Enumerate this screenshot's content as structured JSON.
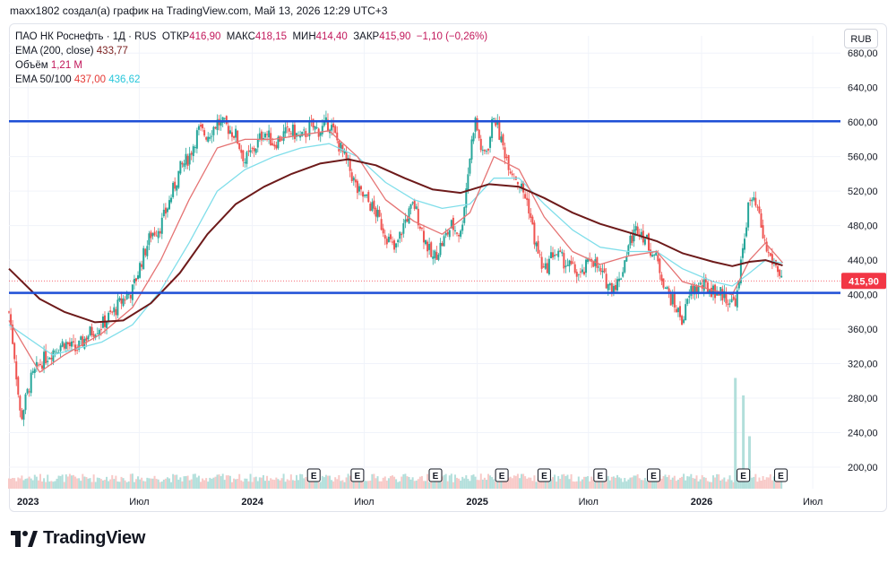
{
  "caption": "maxx1802 создал(а) график на TradingView.com, Май 13, 2026 12:29 UTC+3",
  "legend": {
    "symbol": "ПАО НК Роснефть · 1Д · RUS",
    "open_label": "ОТКР",
    "open": "416,90",
    "high_label": "МАКС",
    "high": "418,15",
    "low_label": "МИН",
    "low": "414,40",
    "close_label": "ЗАКР",
    "close": "415,90",
    "change": "−1,10 (−0,26%)",
    "ema200_label": "EMA (200, close)",
    "ema200_value": "433,77",
    "volume_label": "Объём",
    "volume_value": "1,21 M",
    "ema50_100_label": "EMA 50/100",
    "ema50_value": "437,00",
    "ema100_value": "436,62"
  },
  "currency_button": "RUB",
  "brand": "TradingView",
  "colors": {
    "up": "#26a69a",
    "down": "#ef5350",
    "ema50": "#e57373",
    "ema100": "#80deea",
    "ema200": "#6d1a1a",
    "hline": "#1e4fd6",
    "price_tag": "#f23645"
  },
  "chart_data": {
    "type": "candlestick",
    "symbol": "ПАО НК Роснефть",
    "interval": "1Д",
    "currency": "RUB",
    "x_start": "2022-12-01",
    "x_end": "2026-08-15",
    "y_range": [
      175,
      700
    ],
    "y_ticks": [
      "680,00",
      "640,00",
      "600,00",
      "560,00",
      "520,00",
      "480,00",
      "440,00",
      "400,00",
      "360,00",
      "320,00",
      "280,00",
      "240,00",
      "200,00"
    ],
    "x_ticks": [
      {
        "label": "2023",
        "date": "2023-01-01",
        "bold": true
      },
      {
        "label": "Июл",
        "date": "2023-07-01",
        "bold": false
      },
      {
        "label": "2024",
        "date": "2024-01-01",
        "bold": true
      },
      {
        "label": "Июл",
        "date": "2024-07-01",
        "bold": false
      },
      {
        "label": "2025",
        "date": "2025-01-01",
        "bold": true
      },
      {
        "label": "Июл",
        "date": "2025-07-01",
        "bold": false
      },
      {
        "label": "2026",
        "date": "2026-01-01",
        "bold": true
      },
      {
        "label": "Июл",
        "date": "2026-07-01",
        "bold": false
      }
    ],
    "last_price": "415,90",
    "last_price_value": 415.9,
    "horizontal_lines": [
      601,
      402
    ],
    "close_series": [
      [
        "2022-12-01",
        380
      ],
      [
        "2022-12-10",
        330
      ],
      [
        "2022-12-20",
        255
      ],
      [
        "2023-01-05",
        300
      ],
      [
        "2023-01-20",
        320
      ],
      [
        "2023-02-10",
        335
      ],
      [
        "2023-03-01",
        345
      ],
      [
        "2023-03-20",
        335
      ],
      [
        "2023-04-10",
        355
      ],
      [
        "2023-05-01",
        365
      ],
      [
        "2023-05-20",
        380
      ],
      [
        "2023-06-05",
        395
      ],
      [
        "2023-06-20",
        405
      ],
      [
        "2023-07-05",
        440
      ],
      [
        "2023-07-20",
        470
      ],
      [
        "2023-08-05",
        480
      ],
      [
        "2023-08-20",
        510
      ],
      [
        "2023-09-05",
        545
      ],
      [
        "2023-09-20",
        560
      ],
      [
        "2023-10-05",
        590
      ],
      [
        "2023-10-20",
        585
      ],
      [
        "2023-11-05",
        600
      ],
      [
        "2023-11-20",
        595
      ],
      [
        "2023-12-05",
        585
      ],
      [
        "2023-12-20",
        555
      ],
      [
        "2024-01-05",
        570
      ],
      [
        "2024-01-20",
        590
      ],
      [
        "2024-02-05",
        575
      ],
      [
        "2024-02-20",
        585
      ],
      [
        "2024-03-05",
        590
      ],
      [
        "2024-03-20",
        580
      ],
      [
        "2024-04-05",
        595
      ],
      [
        "2024-04-20",
        590
      ],
      [
        "2024-05-05",
        600
      ],
      [
        "2024-05-20",
        575
      ],
      [
        "2024-06-05",
        550
      ],
      [
        "2024-06-20",
        520
      ],
      [
        "2024-07-05",
        510
      ],
      [
        "2024-07-20",
        495
      ],
      [
        "2024-08-05",
        470
      ],
      [
        "2024-08-20",
        450
      ],
      [
        "2024-09-05",
        485
      ],
      [
        "2024-09-20",
        505
      ],
      [
        "2024-10-05",
        470
      ],
      [
        "2024-10-20",
        440
      ],
      [
        "2024-11-05",
        460
      ],
      [
        "2024-11-20",
        480
      ],
      [
        "2024-12-05",
        470
      ],
      [
        "2024-12-20",
        560
      ],
      [
        "2024-12-28",
        605
      ],
      [
        "2025-01-10",
        560
      ],
      [
        "2025-01-20",
        575
      ],
      [
        "2025-01-28",
        610
      ],
      [
        "2025-02-10",
        575
      ],
      [
        "2025-02-25",
        545
      ],
      [
        "2025-03-10",
        530
      ],
      [
        "2025-03-25",
        505
      ],
      [
        "2025-04-05",
        460
      ],
      [
        "2025-04-20",
        425
      ],
      [
        "2025-05-05",
        450
      ],
      [
        "2025-05-20",
        440
      ],
      [
        "2025-06-05",
        430
      ],
      [
        "2025-06-20",
        420
      ],
      [
        "2025-07-05",
        445
      ],
      [
        "2025-07-20",
        425
      ],
      [
        "2025-08-05",
        410
      ],
      [
        "2025-08-20",
        415
      ],
      [
        "2025-09-05",
        460
      ],
      [
        "2025-09-20",
        480
      ],
      [
        "2025-10-05",
        460
      ],
      [
        "2025-10-20",
        440
      ],
      [
        "2025-11-05",
        405
      ],
      [
        "2025-11-20",
        385
      ],
      [
        "2025-12-01",
        370
      ],
      [
        "2025-12-15",
        405
      ],
      [
        "2026-01-01",
        410
      ],
      [
        "2026-01-20",
        405
      ],
      [
        "2026-02-05",
        400
      ],
      [
        "2026-02-20",
        390
      ],
      [
        "2026-03-01",
        400
      ],
      [
        "2026-03-10",
        460
      ],
      [
        "2026-03-20",
        510
      ],
      [
        "2026-04-01",
        500
      ],
      [
        "2026-04-15",
        455
      ],
      [
        "2026-04-25",
        440
      ],
      [
        "2026-05-05",
        430
      ],
      [
        "2026-05-13",
        415.9
      ]
    ],
    "ema50_series": [
      [
        "2022-12-01",
        370
      ],
      [
        "2023-01-20",
        310
      ],
      [
        "2023-03-01",
        330
      ],
      [
        "2023-05-01",
        355
      ],
      [
        "2023-06-20",
        385
      ],
      [
        "2023-08-05",
        440
      ],
      [
        "2023-09-20",
        510
      ],
      [
        "2023-11-05",
        570
      ],
      [
        "2023-12-20",
        580
      ],
      [
        "2024-02-05",
        580
      ],
      [
        "2024-03-20",
        585
      ],
      [
        "2024-05-05",
        590
      ],
      [
        "2024-06-20",
        560
      ],
      [
        "2024-08-05",
        510
      ],
      [
        "2024-09-20",
        485
      ],
      [
        "2024-11-05",
        470
      ],
      [
        "2024-12-20",
        495
      ],
      [
        "2025-01-28",
        560
      ],
      [
        "2025-03-10",
        545
      ],
      [
        "2025-04-20",
        490
      ],
      [
        "2025-06-05",
        450
      ],
      [
        "2025-07-20",
        435
      ],
      [
        "2025-09-05",
        445
      ],
      [
        "2025-10-20",
        450
      ],
      [
        "2025-12-01",
        415
      ],
      [
        "2026-01-20",
        405
      ],
      [
        "2026-02-20",
        400
      ],
      [
        "2026-03-20",
        440
      ],
      [
        "2026-04-15",
        460
      ],
      [
        "2026-05-13",
        437
      ]
    ],
    "ema100_series": [
      [
        "2022-12-01",
        365
      ],
      [
        "2023-02-10",
        330
      ],
      [
        "2023-05-01",
        345
      ],
      [
        "2023-06-20",
        365
      ],
      [
        "2023-08-05",
        405
      ],
      [
        "2023-09-20",
        460
      ],
      [
        "2023-11-05",
        520
      ],
      [
        "2023-12-20",
        545
      ],
      [
        "2024-02-05",
        560
      ],
      [
        "2024-03-20",
        570
      ],
      [
        "2024-05-05",
        575
      ],
      [
        "2024-06-20",
        560
      ],
      [
        "2024-08-05",
        530
      ],
      [
        "2024-09-20",
        510
      ],
      [
        "2024-11-05",
        500
      ],
      [
        "2024-12-20",
        505
      ],
      [
        "2025-01-28",
        535
      ],
      [
        "2025-03-10",
        535
      ],
      [
        "2025-04-20",
        505
      ],
      [
        "2025-06-05",
        475
      ],
      [
        "2025-07-20",
        455
      ],
      [
        "2025-09-05",
        450
      ],
      [
        "2025-10-20",
        450
      ],
      [
        "2025-12-01",
        430
      ],
      [
        "2026-01-20",
        415
      ],
      [
        "2026-02-20",
        410
      ],
      [
        "2026-03-20",
        425
      ],
      [
        "2026-04-15",
        440
      ],
      [
        "2026-05-13",
        436.6
      ]
    ],
    "ema200_series": [
      [
        "2022-12-01",
        430
      ],
      [
        "2023-01-20",
        395
      ],
      [
        "2023-03-01",
        380
      ],
      [
        "2023-04-20",
        368
      ],
      [
        "2023-06-05",
        370
      ],
      [
        "2023-07-20",
        390
      ],
      [
        "2023-09-05",
        425
      ],
      [
        "2023-10-20",
        470
      ],
      [
        "2023-12-05",
        505
      ],
      [
        "2024-01-20",
        525
      ],
      [
        "2024-03-05",
        540
      ],
      [
        "2024-04-20",
        552
      ],
      [
        "2024-06-05",
        557
      ],
      [
        "2024-07-20",
        550
      ],
      [
        "2024-09-05",
        535
      ],
      [
        "2024-10-20",
        522
      ],
      [
        "2024-12-05",
        518
      ],
      [
        "2025-01-20",
        528
      ],
      [
        "2025-03-10",
        525
      ],
      [
        "2025-04-20",
        512
      ],
      [
        "2025-06-05",
        495
      ],
      [
        "2025-07-20",
        482
      ],
      [
        "2025-09-05",
        472
      ],
      [
        "2025-10-20",
        462
      ],
      [
        "2025-12-01",
        448
      ],
      [
        "2026-01-20",
        438
      ],
      [
        "2026-02-20",
        433
      ],
      [
        "2026-03-20",
        438
      ],
      [
        "2026-04-15",
        440
      ],
      [
        "2026-05-13",
        433.8
      ]
    ],
    "earnings_markers": [
      "2024-04-10",
      "2024-06-20",
      "2024-10-25",
      "2025-02-10",
      "2025-04-20",
      "2025-07-20",
      "2025-10-15",
      "2026-03-10",
      "2026-05-10"
    ],
    "volume_spikes": [
      [
        "2026-02-25",
        0.95
      ],
      [
        "2026-03-10",
        0.8
      ],
      [
        "2026-03-20",
        0.45
      ]
    ]
  }
}
